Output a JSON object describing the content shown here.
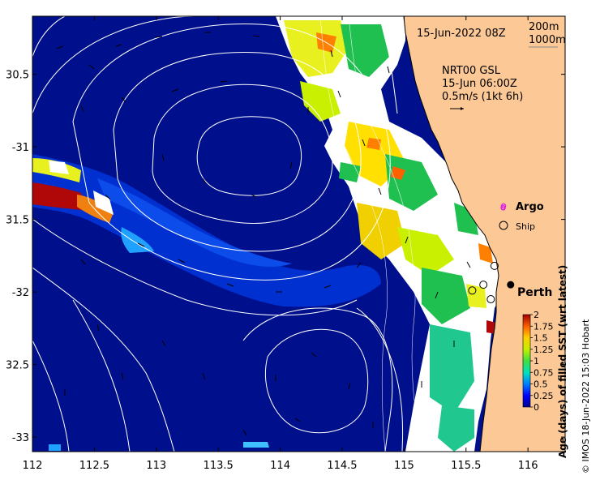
{
  "map": {
    "date_label": "15-Jun-2022 08Z",
    "isobath_labels": [
      "200m",
      "1000m"
    ],
    "current_title": "NRT00 GSL",
    "current_time": "15-Jun 06:00Z",
    "current_scale": "0.5m/s (1kt 6h)",
    "argo_label": "Argo",
    "ship_label": "Ship",
    "city_label": "Perth",
    "credit": "© IMOS 18-Jun-2022 15:03 Hobart",
    "colors": {
      "ocean": "#00108c",
      "land": "#fbc896",
      "argo": "#e020e0"
    }
  },
  "chart_data": {
    "type": "heatmap",
    "xlim": [
      112,
      116.3
    ],
    "ylim": [
      -33.1,
      -30.1
    ],
    "x_ticks": [
      112,
      112.5,
      113,
      113.5,
      114,
      114.5,
      115,
      115.5,
      116
    ],
    "x_tick_labels": [
      "112",
      "112.5",
      "113",
      "113.5",
      "114",
      "114.5",
      "115",
      "115.5",
      "116"
    ],
    "y_ticks": [
      -30.5,
      -31,
      -31.5,
      -32,
      -32.5,
      -33
    ],
    "y_tick_labels": [
      "30.5",
      "-31",
      "31.5",
      "-32",
      "32.5",
      "-33"
    ],
    "colorbar": {
      "label": "Age (days) of filled SST (wrt latest)",
      "range": [
        0,
        2
      ],
      "ticks": [
        0,
        0.25,
        0.5,
        0.75,
        1,
        1.25,
        1.5,
        1.75,
        2
      ],
      "tick_labels": [
        "0",
        "0.25",
        "0.5",
        "0.75",
        "1",
        "1.25",
        "1.5",
        "1.75",
        "2"
      ]
    },
    "city": {
      "name": "Perth",
      "lon": 115.86,
      "lat": -31.95
    },
    "argo": [
      {
        "lon": 115.8,
        "lat": -31.42
      }
    ],
    "ships": [
      {
        "lon": 115.73,
        "lat": -31.82
      },
      {
        "lon": 115.64,
        "lat": -31.95
      },
      {
        "lon": 115.55,
        "lat": -31.99
      },
      {
        "lon": 115.7,
        "lat": -32.05
      }
    ]
  }
}
